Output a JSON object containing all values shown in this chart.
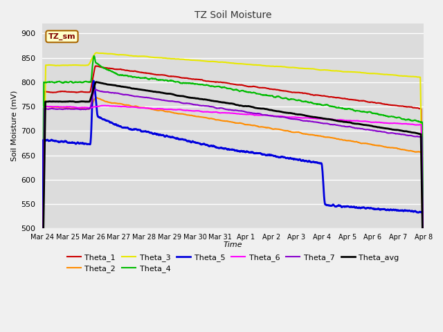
{
  "title": "TZ Soil Moisture",
  "ylabel": "Soil Moisture (mV)",
  "xlabel": "Time",
  "legend_label": "TZ_sm",
  "bg_color": "#dcdcdc",
  "fig_color": "#f0f0f0",
  "ylim": [
    500,
    920
  ],
  "yticks": [
    500,
    550,
    600,
    650,
    700,
    750,
    800,
    850,
    900
  ],
  "xtick_labels": [
    "Mar 24",
    "Mar 25",
    "Mar 26",
    "Mar 27",
    "Mar 28",
    "Mar 29",
    "Mar 30",
    "Mar 31",
    "Apr 1",
    "Apr 2",
    "Apr 3",
    "Apr 4",
    "Apr 5",
    "Apr 6",
    "Apr 7",
    "Apr 8"
  ],
  "series": {
    "Theta_1": {
      "color": "#cc0000",
      "lw": 1.5
    },
    "Theta_2": {
      "color": "#ff8c00",
      "lw": 1.5
    },
    "Theta_3": {
      "color": "#e8e800",
      "lw": 1.5
    },
    "Theta_4": {
      "color": "#00bb00",
      "lw": 1.5
    },
    "Theta_5": {
      "color": "#0000dd",
      "lw": 2.0
    },
    "Theta_6": {
      "color": "#ff00ff",
      "lw": 1.5
    },
    "Theta_7": {
      "color": "#8800cc",
      "lw": 1.5
    },
    "Theta_avg": {
      "color": "#000000",
      "lw": 2.0
    }
  }
}
